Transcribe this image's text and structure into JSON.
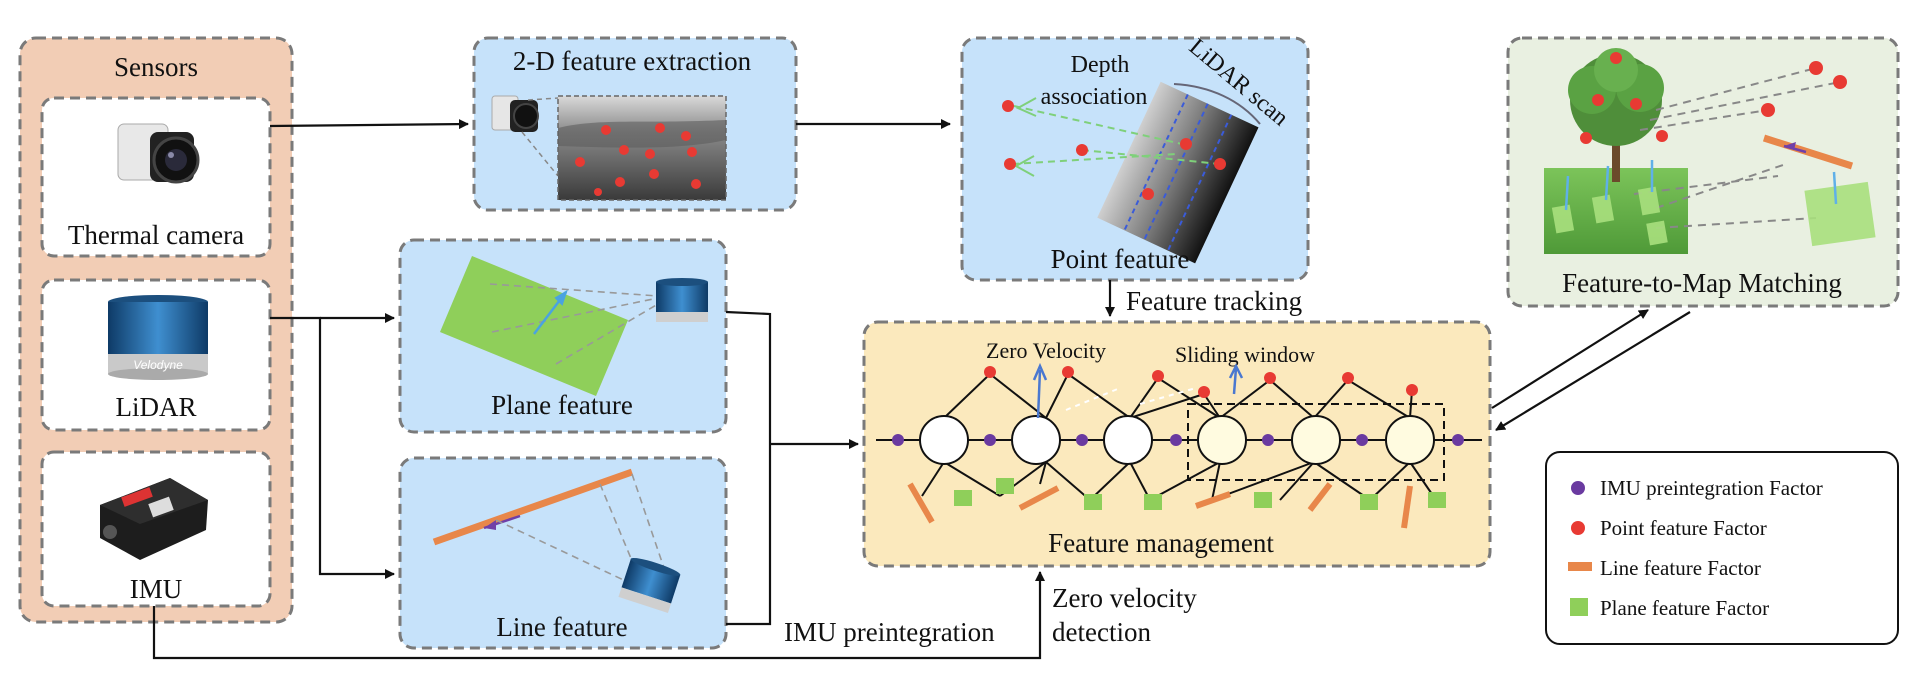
{
  "sensors": {
    "title": "Sensors",
    "thermal_camera": "Thermal camera",
    "lidar": "LiDAR",
    "imu": "IMU"
  },
  "modules": {
    "feature_extraction_2d": "2-D feature extraction",
    "point_feature": "Point feature",
    "depth_association_line1": "Depth",
    "depth_association_line2": "association",
    "lidar_scan": "LiDAR scan",
    "plane_feature": "Plane feature",
    "line_feature": "Line feature",
    "feature_to_map": "Feature-to-Map Matching",
    "feature_management": "Feature management",
    "zero_velocity": "Zero Velocity",
    "sliding_window": "Sliding window"
  },
  "flows": {
    "feature_tracking": "Feature tracking",
    "imu_preintegration": "IMU preintegration",
    "zero_velocity_detection_line1": "Zero velocity",
    "zero_velocity_detection_line2": "detection"
  },
  "legend": {
    "items": [
      {
        "label": "IMU preintegration Factor",
        "icon": "purple-dot"
      },
      {
        "label": "Point feature Factor",
        "icon": "red-dot"
      },
      {
        "label": "Line feature Factor",
        "icon": "orange-bar"
      },
      {
        "label": "Plane feature Factor",
        "icon": "green-square"
      }
    ]
  },
  "colors": {
    "sensor_panel": "#f2cdb5",
    "module_blue": "#c6e2fa",
    "management_yellow": "#fbe9bd",
    "map_panel": "#e9f0e1",
    "imu_factor": "#6a3aa0",
    "point_factor": "#e83a33",
    "line_factor": "#e8874a",
    "plane_factor": "#8fcf5a"
  }
}
